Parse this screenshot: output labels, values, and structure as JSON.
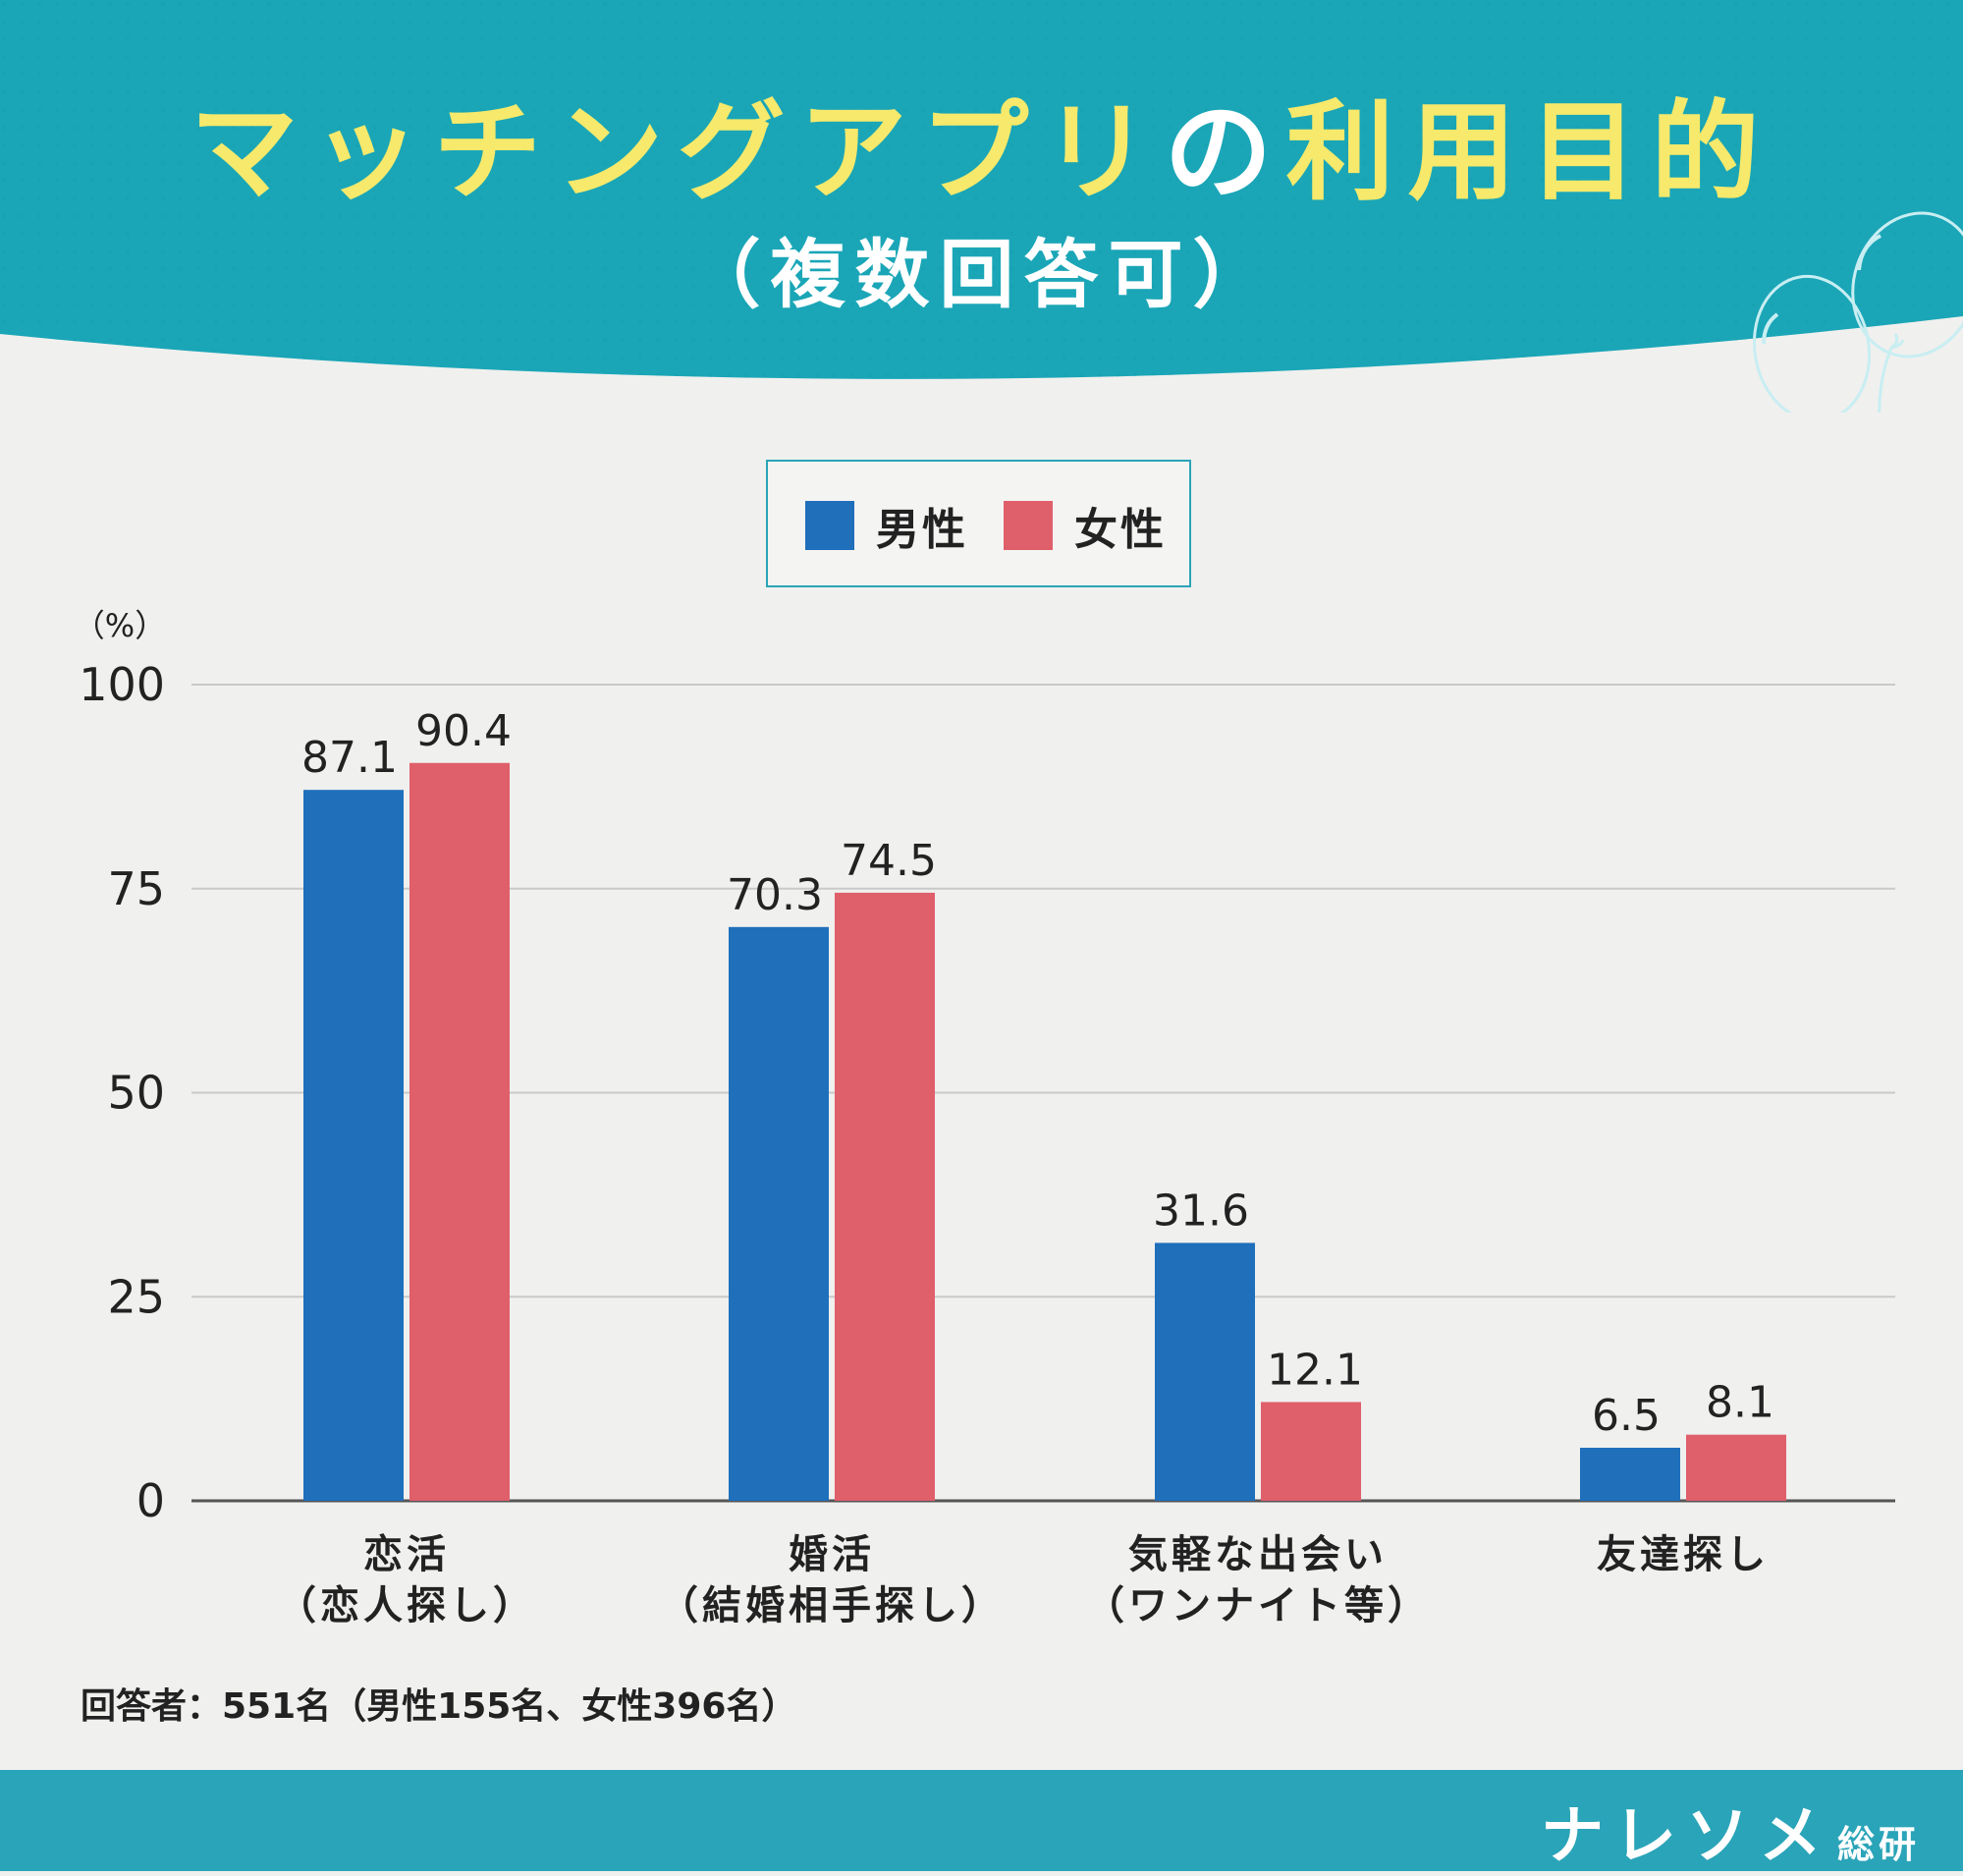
{
  "header": {
    "title_part1": "マッチングアプリ",
    "title_part2": "の",
    "title_part3": "利用目的",
    "subtitle": "（複数回答可）"
  },
  "colors": {
    "header_bg": "#1aa6b7",
    "title_yellow": "#f6e96b",
    "male": "#1f6fbb",
    "female": "#df5f6b",
    "page_bg": "#f0f0ee",
    "footer_bg": "#2aa4b8"
  },
  "chart_data": {
    "type": "bar",
    "unit_label": "（%）",
    "categories": [
      [
        "恋活",
        "（恋人探し）"
      ],
      [
        "婚活",
        "（結婚相手探し）"
      ],
      [
        "気軽な出会い",
        "（ワンナイト等）"
      ],
      [
        "友達探し"
      ]
    ],
    "series": [
      {
        "name": "男性",
        "values": [
          87.1,
          70.3,
          31.6,
          6.5
        ]
      },
      {
        "name": "女性",
        "values": [
          90.4,
          74.5,
          12.1,
          8.1
        ]
      }
    ],
    "ylim": [
      0,
      100
    ],
    "yticks": [
      0,
      25,
      50,
      75,
      100
    ],
    "grid": true,
    "legend_position": "top-center"
  },
  "legend": {
    "male": "男性",
    "female": "女性"
  },
  "note": "回答者：551名（男性155名、女性396名）",
  "footer": {
    "brand_main": "ナレソメ",
    "brand_sub": "総研"
  },
  "decoration": {
    "balloon": "balloon-icon"
  }
}
